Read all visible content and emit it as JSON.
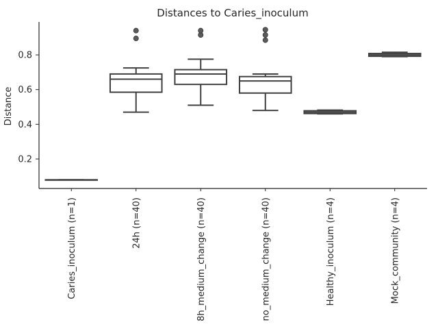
{
  "chart_data": {
    "type": "box",
    "title": "Distances to Caries_inoculum",
    "xlabel": "",
    "ylabel": "Distance",
    "ylim": [
      0.03,
      0.99
    ],
    "yticks": [
      0.2,
      0.4,
      0.6,
      0.8
    ],
    "ytick_labels": [
      "0.2",
      "0.4",
      "0.6",
      "0.8"
    ],
    "grid": false,
    "categories": [
      "Caries_inoculum (n=1)",
      "24h (n=40)",
      "8h_medium_change (n=40)",
      "no_medium_change (n=40)",
      "Healthy_inoculum (n=4)",
      "Mock_community (n=4)"
    ],
    "boxes": [
      {
        "whislo": 0.08,
        "q1": 0.08,
        "med": 0.08,
        "q3": 0.08,
        "whishi": 0.08,
        "fliers": []
      },
      {
        "whislo": 0.47,
        "q1": 0.585,
        "med": 0.66,
        "q3": 0.69,
        "whishi": 0.725,
        "fliers": [
          0.895,
          0.94
        ]
      },
      {
        "whislo": 0.51,
        "q1": 0.63,
        "med": 0.69,
        "q3": 0.715,
        "whishi": 0.775,
        "fliers": [
          0.915,
          0.94
        ]
      },
      {
        "whislo": 0.48,
        "q1": 0.58,
        "med": 0.65,
        "q3": 0.675,
        "whishi": 0.69,
        "fliers": [
          0.885,
          0.915,
          0.945
        ]
      },
      {
        "whislo": 0.46,
        "q1": 0.462,
        "med": 0.47,
        "q3": 0.478,
        "whishi": 0.482,
        "fliers": []
      },
      {
        "whislo": 0.79,
        "q1": 0.792,
        "med": 0.8,
        "q3": 0.808,
        "whishi": 0.815,
        "fliers": []
      }
    ],
    "colors": {
      "box_edge": "#404040",
      "box_face": "#ffffff",
      "flier": "#5a5a5a",
      "text": "#262626"
    }
  }
}
